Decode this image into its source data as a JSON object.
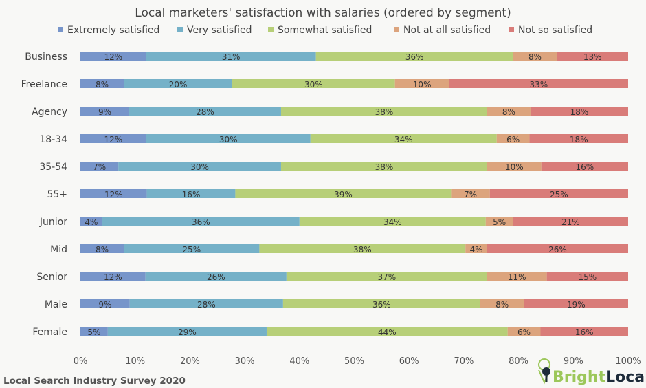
{
  "chart_data": {
    "type": "bar",
    "orientation": "horizontal",
    "stacked": true,
    "title": "Local marketers' satisfaction with salaries (ordered by segment)",
    "categories": [
      "Business",
      "Freelance",
      "Agency",
      "18-34",
      "35-54",
      "55+",
      "Junior",
      "Mid",
      "Senior",
      "Male",
      "Female"
    ],
    "series": [
      {
        "name": "Extremely satisfied",
        "color": "#7795ca",
        "values": [
          12,
          8,
          9,
          12,
          7,
          12,
          4,
          8,
          12,
          9,
          5
        ]
      },
      {
        "name": "Very satisfied",
        "color": "#75b1c8",
        "values": [
          31,
          20,
          28,
          30,
          30,
          16,
          36,
          25,
          26,
          28,
          29
        ]
      },
      {
        "name": "Somewhat satisfied",
        "color": "#b7cf78",
        "values": [
          36,
          30,
          38,
          34,
          38,
          39,
          34,
          38,
          37,
          36,
          44
        ]
      },
      {
        "name": "Not at all satisfied",
        "color": "#dca47d",
        "values": [
          8,
          10,
          8,
          6,
          10,
          7,
          5,
          4,
          11,
          8,
          6
        ]
      },
      {
        "name": "Not so satisfied",
        "color": "#d97c79",
        "values": [
          13,
          33,
          18,
          18,
          16,
          25,
          21,
          26,
          15,
          19,
          16
        ]
      }
    ],
    "xlim": [
      0,
      100
    ],
    "xticks": [
      "0%",
      "10%",
      "20%",
      "30%",
      "40%",
      "50%",
      "60%",
      "70%",
      "80%",
      "90%",
      "100%"
    ],
    "legend_position": "top",
    "grid": false
  },
  "footer": {
    "source": "Local Search Industry Survey 2020",
    "logo_text": "BrightLocal"
  }
}
